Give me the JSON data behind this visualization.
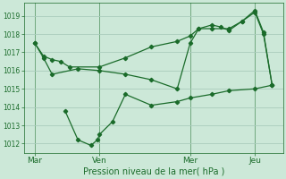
{
  "background_color": "#cce8d8",
  "grid_color": "#aaccbc",
  "line_color": "#1a6b2a",
  "x_ticks_labels": [
    "Mar",
    "Ven",
    "Mer",
    "Jeu"
  ],
  "x_ticks_pos": [
    0,
    30,
    72,
    102
  ],
  "vline_pos": [
    0,
    30,
    72,
    102
  ],
  "ylim": [
    1011.5,
    1019.7
  ],
  "yticks": [
    1012,
    1013,
    1014,
    1015,
    1016,
    1017,
    1018,
    1019
  ],
  "xlabel": "Pression niveau de la mer( hPa )",
  "line1_x": [
    0,
    4,
    8,
    12,
    16,
    30,
    42,
    54,
    66,
    72,
    76,
    82,
    90,
    96,
    102,
    106,
    110
  ],
  "line1_y": [
    1017.5,
    1016.8,
    1016.6,
    1016.5,
    1016.2,
    1016.2,
    1016.7,
    1017.3,
    1017.6,
    1017.9,
    1018.3,
    1018.3,
    1018.3,
    1018.7,
    1019.3,
    1018.1,
    1015.2
  ],
  "line2_x": [
    0,
    4,
    8,
    20,
    30,
    42,
    54,
    66,
    72,
    76,
    82,
    86,
    90,
    96,
    102,
    106,
    110
  ],
  "line2_y": [
    1017.5,
    1016.7,
    1015.8,
    1016.1,
    1016.0,
    1015.8,
    1015.5,
    1015.0,
    1017.5,
    1018.3,
    1018.5,
    1018.4,
    1018.2,
    1018.7,
    1019.2,
    1018.0,
    1015.2
  ],
  "line3_x": [
    14,
    20,
    26,
    29,
    30,
    36,
    42,
    54,
    66,
    72,
    82,
    90,
    102,
    110
  ],
  "line3_y": [
    1013.8,
    1012.2,
    1011.9,
    1012.2,
    1012.5,
    1013.2,
    1014.7,
    1014.1,
    1014.3,
    1014.5,
    1014.7,
    1014.9,
    1015.0,
    1015.2
  ],
  "xlim": [
    -5,
    115
  ]
}
